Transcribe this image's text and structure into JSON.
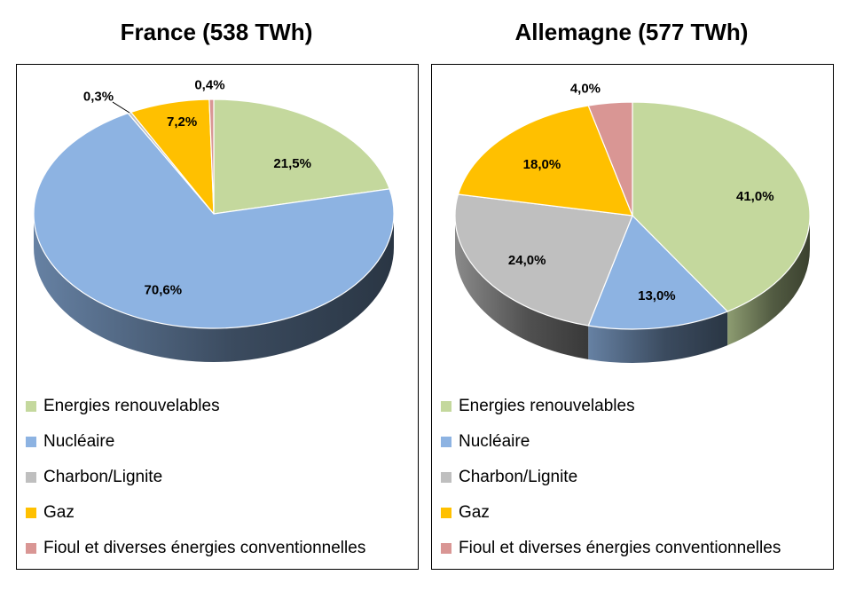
{
  "chart_data": [
    {
      "type": "pie",
      "title": "France (538 TWh)",
      "categories": [
        "Energies renouvelables",
        "Nucléaire",
        "Charbon/Lignite",
        "Gaz",
        "Fioul et diverses énergies conventionnelles"
      ],
      "values": [
        21.5,
        70.6,
        0.3,
        7.2,
        0.4
      ],
      "data_labels": [
        "21,5%",
        "70,6%",
        "0,3%",
        "7,2%",
        "0,4%"
      ],
      "colors": [
        "#c4d89d",
        "#8db3e2",
        "#bfbfbf",
        "#ffc000",
        "#d99694"
      ],
      "legend_position": "bottom"
    },
    {
      "type": "pie",
      "title": "Allemagne (577 TWh)",
      "categories": [
        "Energies renouvelables",
        "Nucléaire",
        "Charbon/Lignite",
        "Gaz",
        "Fioul et diverses énergies conventionnelles"
      ],
      "values": [
        41.0,
        13.0,
        24.0,
        18.0,
        4.0
      ],
      "data_labels": [
        "41,0%",
        "13,0%",
        "24,0%",
        "18,0%",
        "4,0%"
      ],
      "colors": [
        "#c4d89d",
        "#8db3e2",
        "#bfbfbf",
        "#ffc000",
        "#d99694"
      ],
      "legend_position": "bottom"
    }
  ]
}
